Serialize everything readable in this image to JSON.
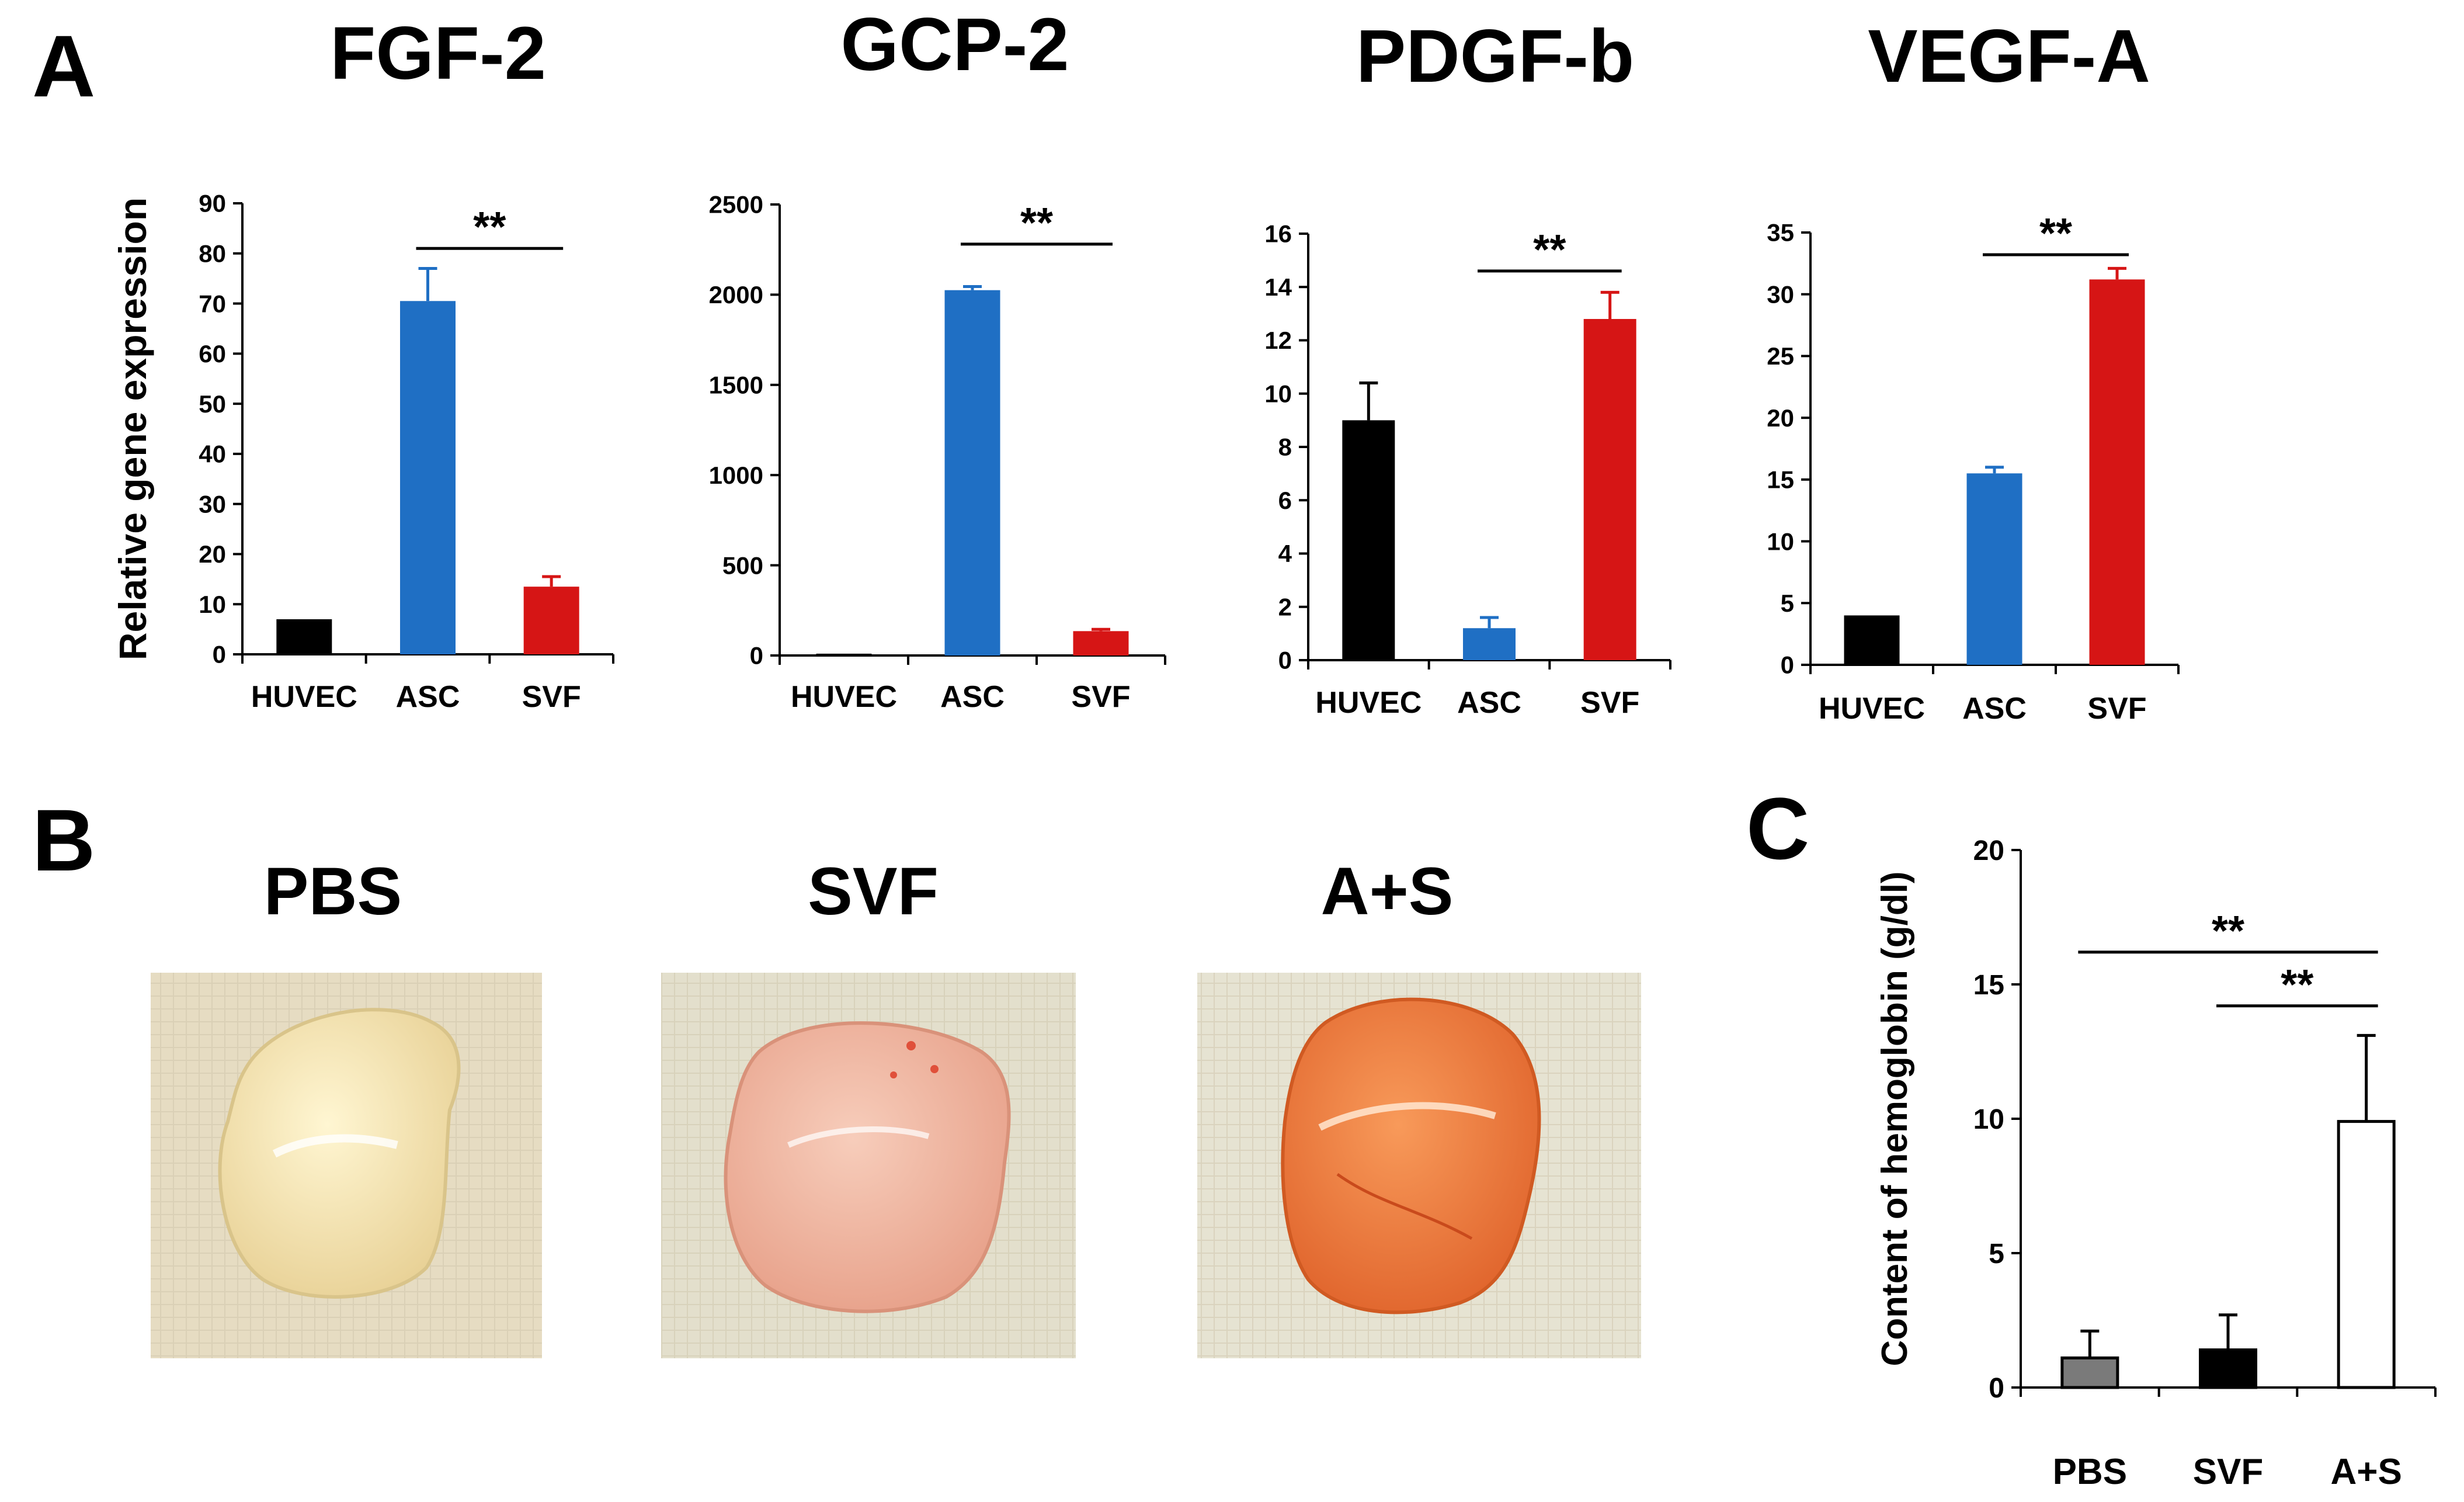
{
  "panel_labels": {
    "a": "A",
    "b": "B",
    "c": "C"
  },
  "chart_data": [
    {
      "id": "fgf2",
      "type": "bar",
      "title": "FGF-2",
      "ylabel": "Relative gene expression",
      "categories": [
        "HUVEC",
        "ASC",
        "SVF"
      ],
      "values": [
        7,
        70.5,
        13.5
      ],
      "errors": [
        0,
        6.5,
        2
      ],
      "colors": [
        "#000000",
        "#1f6fc4",
        "#d61515"
      ],
      "ylim": [
        0,
        90
      ],
      "yticks": [
        0,
        10,
        20,
        30,
        40,
        50,
        60,
        70,
        80,
        90
      ],
      "significance": [
        {
          "from": 1,
          "to": 2,
          "label": "**",
          "y": 81
        }
      ]
    },
    {
      "id": "gcp2",
      "type": "bar",
      "title": "GCP-2",
      "ylabel": "",
      "categories": [
        "HUVEC",
        "ASC",
        "SVF"
      ],
      "values": [
        10,
        2025,
        135
      ],
      "errors": [
        0,
        20,
        10
      ],
      "colors": [
        "#000000",
        "#1f6fc4",
        "#d61515"
      ],
      "ylim": [
        0,
        2500
      ],
      "yticks": [
        0,
        500,
        1000,
        1500,
        2000,
        2500
      ],
      "significance": [
        {
          "from": 1,
          "to": 2,
          "label": "**",
          "y": 2280
        }
      ]
    },
    {
      "id": "pdgfb",
      "type": "bar",
      "title": "PDGF-b",
      "ylabel": "",
      "categories": [
        "HUVEC",
        "ASC",
        "SVF"
      ],
      "values": [
        9,
        1.2,
        12.8
      ],
      "errors": [
        1.4,
        0.4,
        1.0
      ],
      "colors": [
        "#000000",
        "#1f6fc4",
        "#d61515"
      ],
      "ylim": [
        0,
        16
      ],
      "yticks": [
        0,
        2,
        4,
        6,
        8,
        10,
        12,
        14,
        16
      ],
      "significance": [
        {
          "from": 1,
          "to": 2,
          "label": "**",
          "y": 14.6
        }
      ]
    },
    {
      "id": "vegfa",
      "type": "bar",
      "title": "VEGF-A",
      "ylabel": "",
      "categories": [
        "HUVEC",
        "ASC",
        "SVF"
      ],
      "values": [
        4,
        15.5,
        31.2
      ],
      "errors": [
        0,
        0.5,
        0.9
      ],
      "colors": [
        "#000000",
        "#1f6fc4",
        "#d61515"
      ],
      "ylim": [
        0,
        35
      ],
      "yticks": [
        0,
        5,
        10,
        15,
        20,
        25,
        30,
        35
      ],
      "significance": [
        {
          "from": 1,
          "to": 2,
          "label": "**",
          "y": 33.2
        }
      ]
    },
    {
      "id": "hemoglobin",
      "type": "bar",
      "title": "",
      "ylabel": "Content of hemoglobin (g/dl)",
      "categories": [
        "PBS",
        "SVF",
        "A+S"
      ],
      "values": [
        1.1,
        1.4,
        9.9
      ],
      "errors": [
        1.0,
        1.3,
        3.2
      ],
      "colors": [
        "#7a7a7a",
        "#000000",
        "#ffffff"
      ],
      "ylim": [
        0,
        20
      ],
      "yticks": [
        0,
        5,
        10,
        15,
        20
      ],
      "significance": [
        {
          "from": 0,
          "to": 2,
          "label": "**",
          "y": 16.2
        },
        {
          "from": 1,
          "to": 2,
          "label": "**",
          "y": 14.2
        }
      ]
    }
  ],
  "photos": [
    {
      "label": "PBS",
      "gel_color": "#f4e6b4",
      "gel_edge": "#d9c48a",
      "bg": "#e6dcc2"
    },
    {
      "label": "SVF",
      "gel_color": "#efb7a0",
      "gel_edge": "#d9927a",
      "bg": "#e3dfcc"
    },
    {
      "label": "A+S",
      "gel_color": "#f07a3a",
      "gel_edge": "#d05a22",
      "bg": "#e6e3d2"
    }
  ]
}
